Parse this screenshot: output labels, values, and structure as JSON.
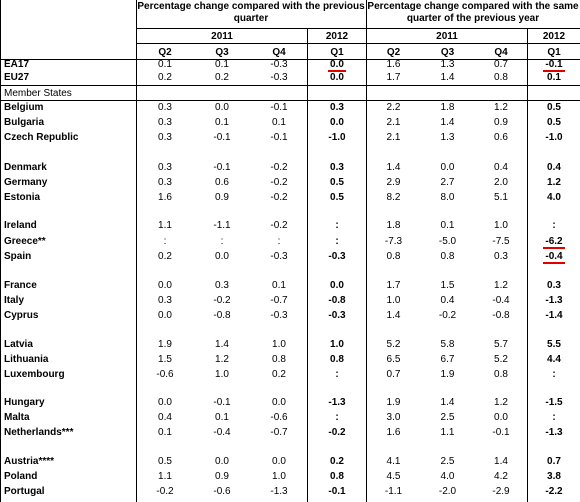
{
  "headers": {
    "left_group": "Percentage change compared with the previous quarter",
    "right_group": "Percentage change compared with the same quarter of the previous year",
    "years": [
      "2011",
      "2012",
      "2011",
      "2012"
    ],
    "quarters": [
      "Q2",
      "Q3",
      "Q4",
      "Q1",
      "Q2",
      "Q3",
      "Q4",
      "Q1"
    ]
  },
  "section_label": "Member States",
  "rows": [
    {
      "name": "EA17",
      "vals": [
        "0.1",
        "0.1",
        "-0.3",
        "0.0",
        "1.6",
        "1.3",
        "0.7",
        "-0.1"
      ],
      "ul": [
        3,
        7
      ]
    },
    {
      "name": "EU27",
      "vals": [
        "0.2",
        "0.2",
        "-0.3",
        "0.0",
        "1.7",
        "1.4",
        "0.8",
        "0.1"
      ],
      "ul": []
    },
    {
      "name": "Belgium",
      "vals": [
        "0.3",
        "0.0",
        "-0.1",
        "0.3",
        "2.2",
        "1.8",
        "1.2",
        "0.5"
      ],
      "ul": []
    },
    {
      "name": "Bulgaria",
      "vals": [
        "0.3",
        "0.1",
        "0.1",
        "0.0",
        "2.1",
        "1.4",
        "0.9",
        "0.5"
      ],
      "ul": []
    },
    {
      "name": "Czech Republic",
      "vals": [
        "0.3",
        "-0.1",
        "-0.1",
        "-1.0",
        "2.1",
        "1.3",
        "0.6",
        "-1.0"
      ],
      "ul": []
    },
    {
      "name": "Denmark",
      "vals": [
        "0.3",
        "-0.1",
        "-0.2",
        "0.3",
        "1.4",
        "0.0",
        "0.4",
        "0.4"
      ],
      "ul": []
    },
    {
      "name": "Germany",
      "vals": [
        "0.3",
        "0.6",
        "-0.2",
        "0.5",
        "2.9",
        "2.7",
        "2.0",
        "1.2"
      ],
      "ul": []
    },
    {
      "name": "Estonia",
      "vals": [
        "1.6",
        "0.9",
        "-0.2",
        "0.5",
        "8.2",
        "8.0",
        "5.1",
        "4.0"
      ],
      "ul": []
    },
    {
      "name": "Ireland",
      "vals": [
        "1.1",
        "-1.1",
        "-0.2",
        ":",
        "1.8",
        "0.1",
        "1.0",
        ":"
      ],
      "ul": []
    },
    {
      "name": "Greece**",
      "vals": [
        ":",
        ":",
        ":",
        ":",
        "-7.3",
        "-5.0",
        "-7.5",
        "-6.2"
      ],
      "ul": [
        7
      ]
    },
    {
      "name": "Spain",
      "vals": [
        "0.2",
        "0.0",
        "-0.3",
        "-0.3",
        "0.8",
        "0.8",
        "0.3",
        "-0.4"
      ],
      "ul": [
        7
      ]
    },
    {
      "name": "France",
      "vals": [
        "0.0",
        "0.3",
        "0.1",
        "0.0",
        "1.7",
        "1.5",
        "1.2",
        "0.3"
      ],
      "ul": []
    },
    {
      "name": "Italy",
      "vals": [
        "0.3",
        "-0.2",
        "-0.7",
        "-0.8",
        "1.0",
        "0.4",
        "-0.4",
        "-1.3"
      ],
      "ul": []
    },
    {
      "name": "Cyprus",
      "vals": [
        "0.0",
        "-0.8",
        "-0.3",
        "-0.3",
        "1.4",
        "-0.2",
        "-0.8",
        "-1.4"
      ],
      "ul": []
    },
    {
      "name": "Latvia",
      "vals": [
        "1.9",
        "1.4",
        "1.0",
        "1.0",
        "5.2",
        "5.8",
        "5.7",
        "5.5"
      ],
      "ul": []
    },
    {
      "name": "Lithuania",
      "vals": [
        "1.5",
        "1.2",
        "0.8",
        "0.8",
        "6.5",
        "6.7",
        "5.2",
        "4.4"
      ],
      "ul": []
    },
    {
      "name": "Luxembourg",
      "vals": [
        "-0.6",
        "1.0",
        "0.2",
        ":",
        "0.7",
        "1.9",
        "0.8",
        ":"
      ],
      "ul": []
    },
    {
      "name": "Hungary",
      "vals": [
        "0.0",
        "-0.1",
        "0.0",
        "-1.3",
        "1.9",
        "1.4",
        "1.2",
        "-1.5"
      ],
      "ul": []
    },
    {
      "name": "Malta",
      "vals": [
        "0.4",
        "0.1",
        "-0.6",
        ":",
        "3.0",
        "2.5",
        "0.0",
        ":"
      ],
      "ul": []
    },
    {
      "name": "Netherlands***",
      "vals": [
        "0.1",
        "-0.4",
        "-0.7",
        "-0.2",
        "1.6",
        "1.1",
        "-0.1",
        "-1.3"
      ],
      "ul": []
    },
    {
      "name": "Austria****",
      "vals": [
        "0.5",
        "0.0",
        "0.0",
        "0.2",
        "4.1",
        "2.5",
        "1.4",
        "0.7"
      ],
      "ul": []
    },
    {
      "name": "Poland",
      "vals": [
        "1.1",
        "0.9",
        "1.0",
        "0.8",
        "4.5",
        "4.0",
        "4.2",
        "3.8"
      ],
      "ul": []
    },
    {
      "name": "Portugal",
      "vals": [
        "-0.2",
        "-0.6",
        "-1.3",
        "-0.1",
        "-1.1",
        "-2.0",
        "-2.9",
        "-2.2"
      ],
      "ul": []
    }
  ]
}
